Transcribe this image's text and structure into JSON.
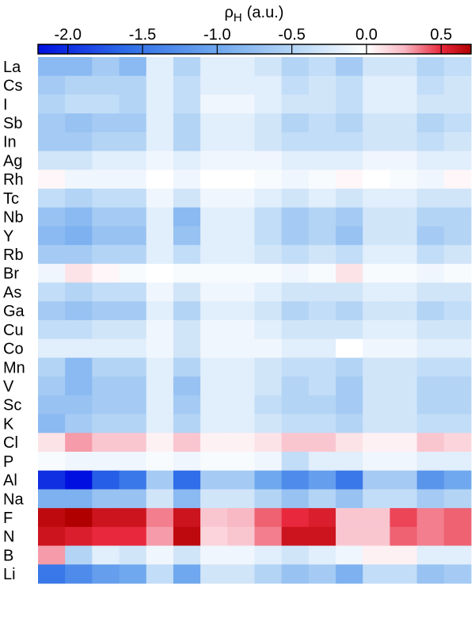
{
  "chart_data": {
    "type": "heatmap",
    "colorbar": {
      "label": {
        "symbol": "ρ",
        "subscript": "H",
        "unit": "(a.u.)"
      },
      "lim": [
        -2.2,
        0.7
      ],
      "ticks": [
        {
          "value": -2,
          "label": "-2.0"
        },
        -1.5,
        {
          "value": -1,
          "label": "-1.0"
        },
        -0.5,
        {
          "value": 0,
          "label": "0.0"
        },
        0.5
      ],
      "colormap": [
        {
          "value": -2.2,
          "color": "#0010e0"
        },
        {
          "value": -1.6,
          "color": "#2f6ee8"
        },
        {
          "value": -1.0,
          "color": "#6fa8ee"
        },
        {
          "value": -0.5,
          "color": "#b3d4f5"
        },
        {
          "value": 0,
          "color": "#ffffff"
        },
        {
          "value": 0.25,
          "color": "#f8b8c4"
        },
        {
          "value": 0.5,
          "color": "#e8283c"
        },
        {
          "value": 0.7,
          "color": "#b00000"
        }
      ]
    },
    "rows": [
      "La",
      "Cs",
      "I",
      "Sb",
      "In",
      "Ag",
      "Rh",
      "Tc",
      "Nb",
      "Y",
      "Rb",
      "Br",
      "As",
      "Ga",
      "Cu",
      "Co",
      "Mn",
      "V",
      "Sc",
      "K",
      "Cl",
      "P",
      "Al",
      "Na",
      "F",
      "N",
      "B",
      "Li"
    ],
    "values": [
      [
        -0.8,
        -0.8,
        -0.6,
        -0.8,
        -0.2,
        -0.5,
        -0.2,
        -0.2,
        -0.3,
        -0.5,
        -0.4,
        -0.6,
        -0.3,
        -0.3,
        -0.5,
        -0.4
      ],
      [
        -0.6,
        -0.5,
        -0.5,
        -0.5,
        -0.2,
        -0.4,
        -0.2,
        -0.2,
        -0.2,
        -0.4,
        -0.3,
        -0.4,
        -0.2,
        -0.2,
        -0.4,
        -0.3
      ],
      [
        -0.5,
        -0.4,
        -0.4,
        -0.5,
        -0.2,
        -0.4,
        -0.1,
        -0.1,
        -0.2,
        -0.3,
        -0.3,
        -0.4,
        -0.2,
        -0.2,
        -0.3,
        -0.3
      ],
      [
        -0.6,
        -0.7,
        -0.6,
        -0.6,
        -0.2,
        -0.5,
        -0.2,
        -0.2,
        -0.3,
        -0.5,
        -0.4,
        -0.5,
        -0.3,
        -0.3,
        -0.5,
        -0.4
      ],
      [
        -0.6,
        -0.6,
        -0.5,
        -0.5,
        -0.2,
        -0.5,
        -0.2,
        -0.2,
        -0.3,
        -0.4,
        -0.4,
        -0.4,
        -0.3,
        -0.3,
        -0.4,
        -0.3
      ],
      [
        -0.3,
        -0.3,
        -0.2,
        -0.2,
        -0.1,
        -0.2,
        -0.1,
        -0.1,
        -0.1,
        -0.2,
        -0.2,
        -0.2,
        -0.1,
        -0.1,
        -0.2,
        -0.2
      ],
      [
        0.03,
        -0.1,
        -0.1,
        -0.1,
        0,
        -0.1,
        0,
        0,
        -0.05,
        -0.1,
        -0.05,
        0.03,
        0,
        -0.05,
        -0.1,
        0.03
      ],
      [
        -0.4,
        -0.5,
        -0.4,
        -0.4,
        -0.1,
        -0.3,
        -0.1,
        -0.1,
        -0.2,
        -0.3,
        -0.2,
        -0.3,
        -0.2,
        -0.2,
        -0.3,
        -0.3
      ],
      [
        -0.7,
        -0.8,
        -0.6,
        -0.6,
        -0.2,
        -0.8,
        -0.2,
        -0.2,
        -0.4,
        -0.6,
        -0.5,
        -0.6,
        -0.3,
        -0.3,
        -0.5,
        -0.5
      ],
      [
        -0.8,
        -0.9,
        -0.7,
        -0.7,
        -0.2,
        -0.7,
        -0.2,
        -0.2,
        -0.4,
        -0.6,
        -0.5,
        -0.7,
        -0.3,
        -0.3,
        -0.6,
        -0.5
      ],
      [
        -0.6,
        -0.6,
        -0.5,
        -0.5,
        -0.2,
        -0.4,
        -0.2,
        -0.2,
        -0.3,
        -0.4,
        -0.3,
        -0.4,
        -0.2,
        -0.2,
        -0.4,
        -0.3
      ],
      [
        -0.1,
        0.1,
        0.03,
        -0.05,
        0,
        -0.05,
        -0.05,
        -0.05,
        -0.05,
        -0.1,
        -0.05,
        0.1,
        -0.05,
        -0.05,
        -0.1,
        -0.05
      ],
      [
        -0.4,
        -0.5,
        -0.4,
        -0.4,
        -0.1,
        -0.3,
        -0.1,
        -0.1,
        -0.2,
        -0.3,
        -0.3,
        -0.3,
        -0.2,
        -0.2,
        -0.3,
        -0.3
      ],
      [
        -0.6,
        -0.7,
        -0.6,
        -0.6,
        -0.2,
        -0.5,
        -0.2,
        -0.2,
        -0.3,
        -0.5,
        -0.4,
        -0.5,
        -0.3,
        -0.3,
        -0.5,
        -0.4
      ],
      [
        -0.4,
        -0.4,
        -0.3,
        -0.3,
        -0.1,
        -0.3,
        -0.1,
        -0.1,
        -0.2,
        -0.3,
        -0.3,
        -0.3,
        -0.2,
        -0.2,
        -0.3,
        -0.3
      ],
      [
        -0.2,
        -0.2,
        -0.2,
        -0.2,
        -0.1,
        -0.3,
        -0.1,
        -0.1,
        -0.1,
        -0.2,
        -0.2,
        0,
        -0.1,
        -0.1,
        -0.2,
        -0.2
      ],
      [
        -0.5,
        -0.8,
        -0.5,
        -0.5,
        -0.2,
        -0.5,
        -0.2,
        -0.2,
        -0.3,
        -0.4,
        -0.4,
        -0.5,
        -0.3,
        -0.3,
        -0.4,
        -0.4
      ],
      [
        -0.6,
        -0.8,
        -0.6,
        -0.6,
        -0.2,
        -0.7,
        -0.2,
        -0.2,
        -0.3,
        -0.5,
        -0.4,
        -0.6,
        -0.3,
        -0.3,
        -0.5,
        -0.5
      ],
      [
        -0.7,
        -0.7,
        -0.6,
        -0.6,
        -0.2,
        -0.6,
        -0.2,
        -0.2,
        -0.4,
        -0.5,
        -0.5,
        -0.6,
        -0.3,
        -0.3,
        -0.5,
        -0.5
      ],
      [
        -0.8,
        -0.6,
        -0.5,
        -0.5,
        -0.2,
        -0.5,
        -0.2,
        -0.2,
        -0.3,
        -0.4,
        -0.4,
        -0.5,
        -0.3,
        -0.3,
        -0.4,
        -0.4
      ],
      [
        0.1,
        0.3,
        0.2,
        0.2,
        0.05,
        0.2,
        0.05,
        0.05,
        0.1,
        0.2,
        0.2,
        0.1,
        0.05,
        0.05,
        0.2,
        0.15
      ],
      [
        -0.05,
        -0.1,
        -0.1,
        -0.1,
        -0.05,
        -0.1,
        -0.05,
        -0.05,
        -0.1,
        -0.4,
        -0.2,
        -0.2,
        -0.1,
        -0.1,
        -0.2,
        -0.2
      ],
      [
        -2.0,
        -2.2,
        -1.7,
        -1.5,
        -0.6,
        -1.6,
        -0.6,
        -0.6,
        -1.0,
        -1.3,
        -1.1,
        -1.5,
        -0.6,
        -0.6,
        -1.2,
        -1.0
      ],
      [
        -0.9,
        -0.9,
        -0.7,
        -0.7,
        -0.3,
        -0.8,
        -0.3,
        -0.3,
        -0.5,
        -0.7,
        -0.5,
        -0.7,
        -0.4,
        -0.4,
        -0.6,
        -0.5
      ],
      [
        0.65,
        0.7,
        0.6,
        0.6,
        0.35,
        0.6,
        0.2,
        0.25,
        0.4,
        0.5,
        0.55,
        0.2,
        0.2,
        0.45,
        0.35,
        0.4
      ],
      [
        0.6,
        0.55,
        0.5,
        0.5,
        0.3,
        0.65,
        0.15,
        0.2,
        0.35,
        0.6,
        0.6,
        0.2,
        0.2,
        0.4,
        0.35,
        0.4
      ],
      [
        0.3,
        -0.5,
        -0.2,
        -0.3,
        -0.1,
        -0.3,
        -0.1,
        -0.1,
        -0.2,
        -0.3,
        -0.2,
        -0.1,
        0.05,
        0.05,
        -0.2,
        -0.2
      ],
      [
        -1.5,
        -1.3,
        -1.1,
        -1.0,
        -0.4,
        -1.0,
        -0.3,
        -0.3,
        -0.5,
        -0.7,
        -0.6,
        -0.9,
        -0.4,
        -0.4,
        -0.7,
        -0.6
      ]
    ]
  }
}
